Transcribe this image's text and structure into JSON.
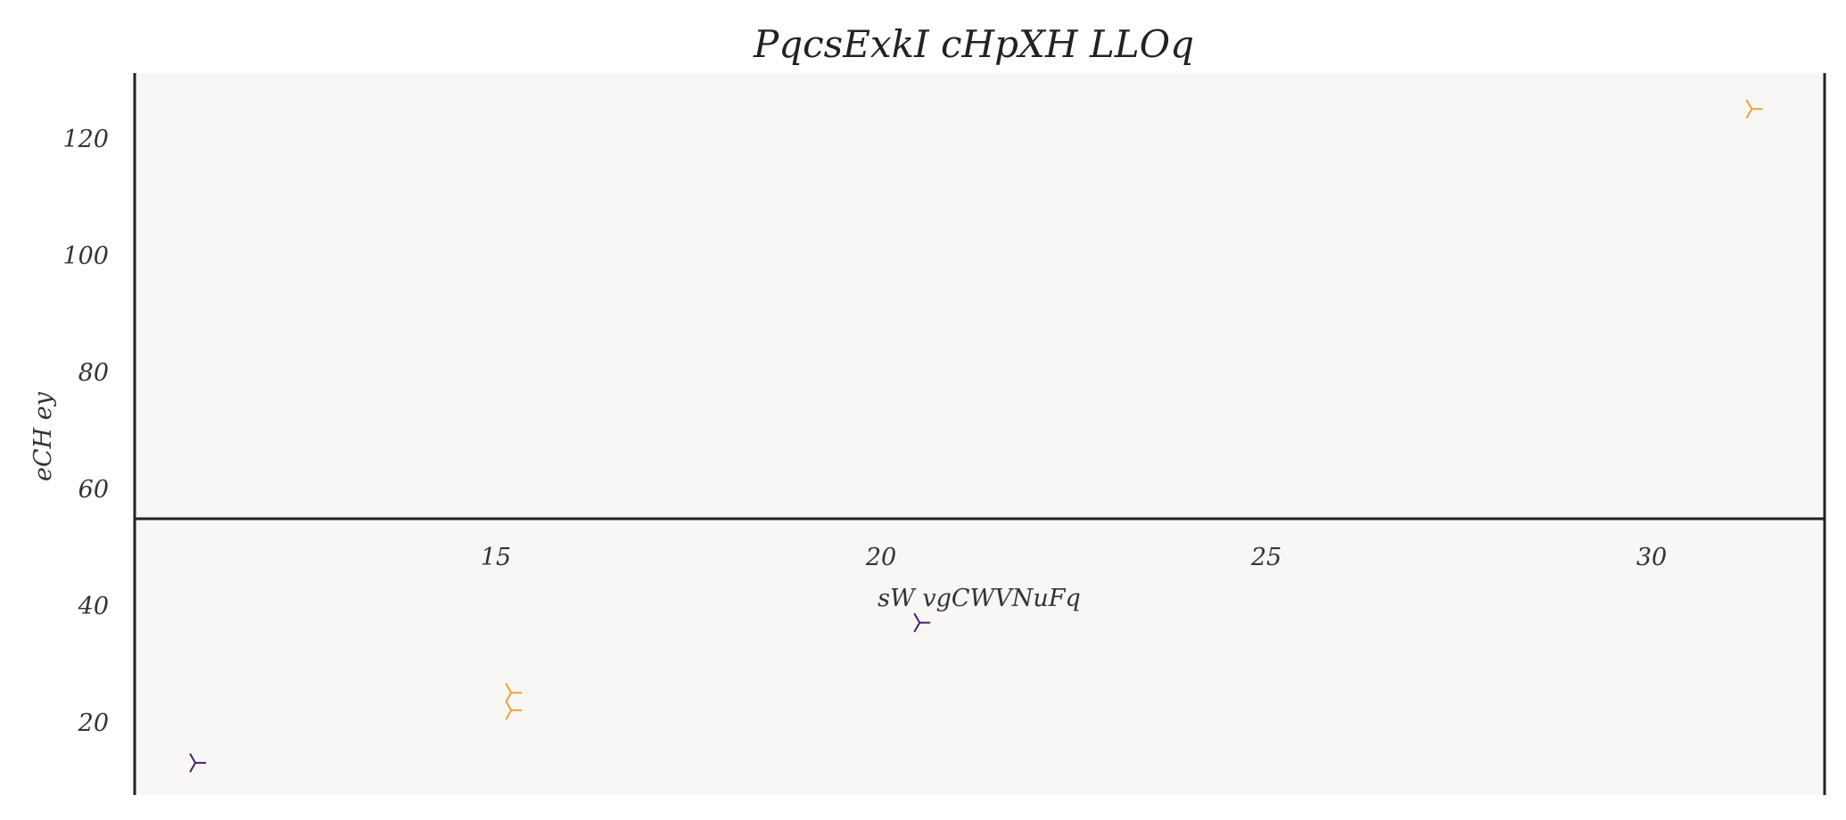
{
  "chart_data": {
    "type": "scatter",
    "title": "PqcsExkI cHpXH LLOq",
    "xlabel": "sW  vgCWVNuFq",
    "ylabel": "eCH ey",
    "x_ticks": [
      15,
      20,
      25,
      30
    ],
    "y_ticks": [
      20,
      40,
      60,
      80,
      100,
      120
    ],
    "marker": "tri_right",
    "series": [
      {
        "color": "#4b1f6f",
        "points": [
          {
            "x": 11.1,
            "y": 13
          },
          {
            "x": 20.5,
            "y": 37
          }
        ]
      },
      {
        "color": "#e8a33a",
        "points": [
          {
            "x": 15.2,
            "y": 22
          },
          {
            "x": 15.2,
            "y": 25
          },
          {
            "x": 31.3,
            "y": 125
          }
        ]
      }
    ],
    "background": "#f8f7f5"
  }
}
